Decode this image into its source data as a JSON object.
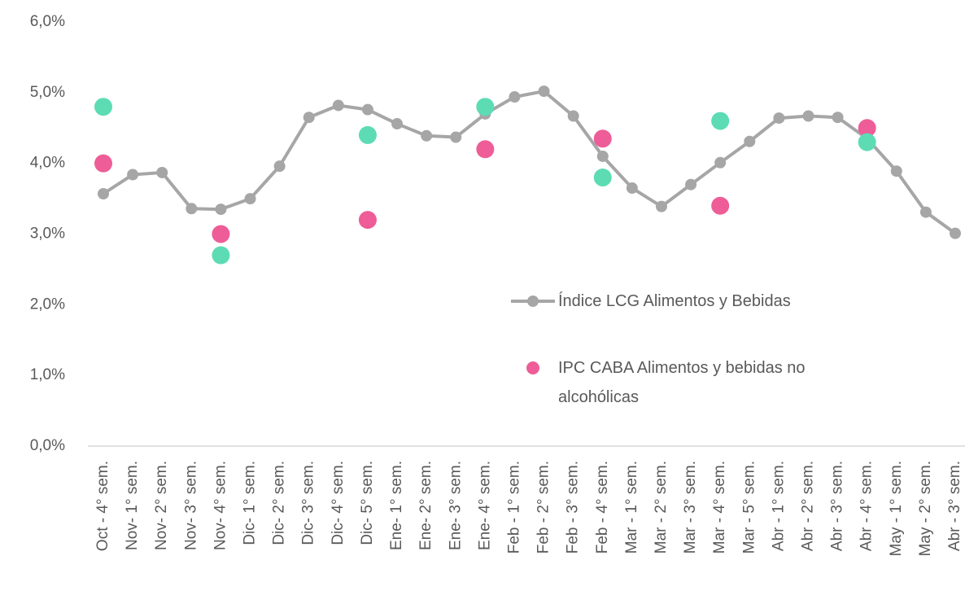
{
  "chart_data": {
    "type": "line",
    "categories": [
      "Oct - 4° sem.",
      "Nov- 1° sem.",
      "Nov- 2° sem.",
      "Nov- 3° sem.",
      "Nov- 4° sem.",
      "Dic- 1° sem.",
      "Dic- 2° sem.",
      "Dic- 3° sem.",
      "Dic- 4° sem.",
      "Dic- 5° sem.",
      "Ene- 1° sem.",
      "Ene- 2° sem.",
      "Ene- 3° sem.",
      "Ene- 4° sem.",
      "Feb - 1° sem.",
      "Feb - 2° sem.",
      "Feb - 3° sem.",
      "Feb - 4° sem.",
      "Mar - 1° sem.",
      "Mar - 2° sem.",
      "Mar - 3° sem.",
      "Mar - 4° sem.",
      "Mar - 5° sem.",
      "Abr - 1° sem.",
      "Abr - 2° sem.",
      "Abr - 3° sem.",
      "Abr - 4° sem.",
      "May - 1° sem.",
      "May - 2° sem.",
      "Abr - 3° sem."
    ],
    "series": [
      {
        "name": "Índice LCG Alimentos y Bebidas",
        "color": "#a6a6a6",
        "style": "line",
        "values": [
          3.57,
          3.84,
          3.87,
          3.36,
          3.35,
          3.5,
          3.96,
          4.65,
          4.82,
          4.76,
          4.56,
          4.39,
          4.37,
          4.7,
          4.94,
          5.02,
          4.67,
          4.1,
          3.65,
          3.39,
          3.7,
          4.01,
          4.31,
          4.64,
          4.67,
          4.65,
          4.35,
          3.89,
          3.31,
          3.01
        ]
      },
      {
        "name": "IPC CABA Alimentos y bebidas no alcohólicas",
        "color": "#ee5d97",
        "style": "dots",
        "values": [
          4.0,
          null,
          null,
          null,
          3.0,
          null,
          null,
          null,
          null,
          3.2,
          null,
          null,
          null,
          4.2,
          null,
          null,
          null,
          4.35,
          null,
          null,
          null,
          3.4,
          null,
          null,
          null,
          null,
          4.5,
          null,
          null,
          null
        ]
      },
      {
        "color": "#5ddcb4",
        "style": "dots",
        "values": [
          4.8,
          null,
          null,
          null,
          2.7,
          null,
          null,
          null,
          null,
          4.4,
          null,
          null,
          null,
          4.8,
          null,
          null,
          null,
          3.8,
          null,
          null,
          null,
          4.6,
          null,
          null,
          null,
          null,
          4.3,
          null,
          null,
          null
        ]
      }
    ],
    "ylim": [
      0,
      6
    ],
    "yticks": [
      {
        "value": 0,
        "label": "0,0%"
      },
      {
        "value": 1,
        "label": "1,0%"
      },
      {
        "value": 2,
        "label": "2,0%"
      },
      {
        "value": 3,
        "label": "3,0%"
      },
      {
        "value": 4,
        "label": "4,0%"
      },
      {
        "value": 5,
        "label": "5,0%"
      },
      {
        "value": 6,
        "label": "6,0%"
      }
    ]
  }
}
